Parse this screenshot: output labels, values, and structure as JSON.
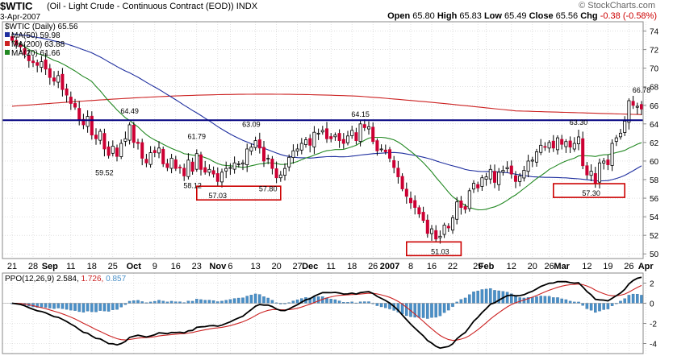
{
  "header": {
    "symbol": "$WTIC",
    "description": "(Oil - Light Crude - Continuous Contract (EOD))",
    "exchange": "INDX",
    "date": "3-Apr-2007",
    "open_label": "Open",
    "open": "65.80",
    "high_label": "High",
    "high": "65.83",
    "low_label": "Low",
    "low": "65.49",
    "close_label": "Close",
    "close": "65.56",
    "chg_label": "Chg",
    "chg": "-0.38 (-0.58%)",
    "logo": "© StockCharts.com"
  },
  "legend": {
    "main": "$WTIC (Daily) 65.56",
    "ma50": "MA(50) 59.98",
    "ma200": "MA(200) 63.88",
    "ma20": "MA(20) 61.66",
    "ppo_name": "PPO(12,26,9)",
    "ppo_v1": "2.584,",
    "ppo_v2": "1.726,",
    "ppo_v3": "0.857"
  },
  "colors": {
    "up": "#000000",
    "down": "#cc0033",
    "ma50": "#1f2f9f",
    "ma200": "#cc2222",
    "ma20": "#228822",
    "resistance": "#000080",
    "box": "#cc0000",
    "hist": "#4a90c8",
    "grid": "#cccccc"
  },
  "chart_data": [
    {
      "type": "candlestick",
      "ylim": [
        49.5,
        75
      ],
      "y_ticks": [
        50,
        52,
        54,
        56,
        58,
        60,
        62,
        64,
        66,
        68,
        70,
        72,
        74
      ],
      "x_tick_labels": [
        {
          "i": 0,
          "label": "21"
        },
        {
          "i": 5,
          "label": "28"
        },
        {
          "i": 9,
          "label": "Sep"
        },
        {
          "i": 14,
          "label": "11"
        },
        {
          "i": 19,
          "label": "18"
        },
        {
          "i": 24,
          "label": "25"
        },
        {
          "i": 29,
          "label": "Oct"
        },
        {
          "i": 34,
          "label": "9"
        },
        {
          "i": 39,
          "label": "16"
        },
        {
          "i": 44,
          "label": "23"
        },
        {
          "i": 49,
          "label": "Nov"
        },
        {
          "i": 52,
          "label": "6"
        },
        {
          "i": 58,
          "label": "13"
        },
        {
          "i": 63,
          "label": "20"
        },
        {
          "i": 68,
          "label": "27"
        },
        {
          "i": 71,
          "label": "Dec"
        },
        {
          "i": 76,
          "label": "11"
        },
        {
          "i": 81,
          "label": "18"
        },
        {
          "i": 86,
          "label": "26"
        },
        {
          "i": 90,
          "label": "2007"
        },
        {
          "i": 95,
          "label": "8"
        },
        {
          "i": 100,
          "label": "16"
        },
        {
          "i": 105,
          "label": "22"
        },
        {
          "i": 111,
          "label": "29"
        },
        {
          "i": 113,
          "label": "Feb"
        },
        {
          "i": 119,
          "label": "12"
        },
        {
          "i": 124,
          "label": "20"
        },
        {
          "i": 128,
          "label": "26"
        },
        {
          "i": 131,
          "label": "Mar"
        },
        {
          "i": 137,
          "label": "12"
        },
        {
          "i": 142,
          "label": "19"
        },
        {
          "i": 147,
          "label": "26"
        },
        {
          "i": 151,
          "label": "Apr"
        }
      ],
      "price_annotations": [
        {
          "i": 28,
          "value": 64.49,
          "label": "64.49",
          "pos": "above"
        },
        {
          "i": 22,
          "value": 59.52,
          "label": "59.52",
          "pos": "below"
        },
        {
          "i": 44,
          "value": 61.79,
          "label": "61.79",
          "pos": "above"
        },
        {
          "i": 43,
          "value": 58.12,
          "label": "58.12",
          "pos": "below"
        },
        {
          "i": 57,
          "value": 63.09,
          "label": "63.09",
          "pos": "above"
        },
        {
          "i": 49,
          "value": 57.03,
          "label": "57.03",
          "pos": "below"
        },
        {
          "i": 61,
          "value": 57.8,
          "label": "57.80",
          "pos": "below"
        },
        {
          "i": 83,
          "value": 64.15,
          "label": "64.15",
          "pos": "above"
        },
        {
          "i": 102,
          "value": 51.03,
          "label": "51.03",
          "pos": "below"
        },
        {
          "i": 135,
          "value": 63.3,
          "label": "63.30",
          "pos": "above"
        },
        {
          "i": 138,
          "value": 57.3,
          "label": "57.30",
          "pos": "below"
        },
        {
          "i": 150,
          "value": 66.78,
          "label": "66.78",
          "pos": "above"
        }
      ],
      "resistance_line": 64.4,
      "boxes": [
        {
          "i_from": 44,
          "i_to": 64,
          "value": 57.03
        },
        {
          "i_from": 94,
          "i_to": 107,
          "value": 51.03
        },
        {
          "i_from": 129,
          "i_to": 146,
          "value": 57.3
        }
      ],
      "close_series": [
        73.0,
        72.5,
        72.3,
        71.5,
        70.8,
        70.6,
        70.3,
        70.7,
        69.9,
        69.0,
        68.6,
        69.2,
        67.7,
        67.1,
        66.2,
        65.8,
        64.4,
        63.9,
        64.8,
        62.8,
        62.4,
        63.2,
        61.3,
        60.6,
        61.6,
        60.5,
        61.9,
        62.4,
        63.9,
        62.0,
        61.9,
        60.3,
        59.8,
        60.9,
        60.9,
        61.4,
        59.7,
        59.3,
        60.3,
        59.2,
        59.3,
        58.4,
        60.1,
        58.9,
        60.8,
        59.1,
        58.8,
        59.1,
        58.6,
        57.8,
        58.8,
        59.2,
        59.3,
        59.8,
        59.7,
        59.8,
        61.3,
        61.5,
        62.2,
        61.4,
        60.0,
        60.3,
        59.2,
        58.2,
        58.5,
        59.2,
        60.4,
        61.1,
        61.3,
        61.9,
        62.3,
        61.7,
        63.1,
        63.0,
        63.3,
        62.4,
        62.4,
        62.8,
        62.2,
        61.9,
        62.7,
        63.3,
        62.2,
        64.0,
        63.6,
        63.7,
        62.1,
        61.1,
        61.3,
        61.0,
        60.3,
        59.3,
        58.3,
        57.0,
        56.2,
        55.5,
        55.0,
        54.3,
        53.6,
        52.2,
        52.7,
        51.6,
        51.9,
        53.1,
        52.8,
        53.9,
        55.6,
        55.0,
        54.8,
        56.8,
        57.6,
        57.1,
        58.2,
        58.3,
        59.1,
        57.7,
        58.8,
        59.0,
        59.3,
        58.6,
        57.8,
        58.4,
        59.0,
        60.0,
        60.1,
        61.0,
        61.7,
        61.5,
        62.0,
        61.4,
        62.5,
        61.8,
        62.1,
        61.5,
        61.9,
        62.6,
        59.5,
        58.5,
        58.9,
        57.6,
        59.8,
        60.0,
        59.6,
        61.9,
        62.5,
        63.0,
        64.3,
        66.5,
        66.0,
        65.9,
        65.6
      ]
    },
    {
      "type": "line",
      "name": "PPO(12,26,9)",
      "ylim": [
        -5,
        3
      ],
      "y_ticks": [
        -4,
        -2,
        0,
        2
      ]
    }
  ]
}
